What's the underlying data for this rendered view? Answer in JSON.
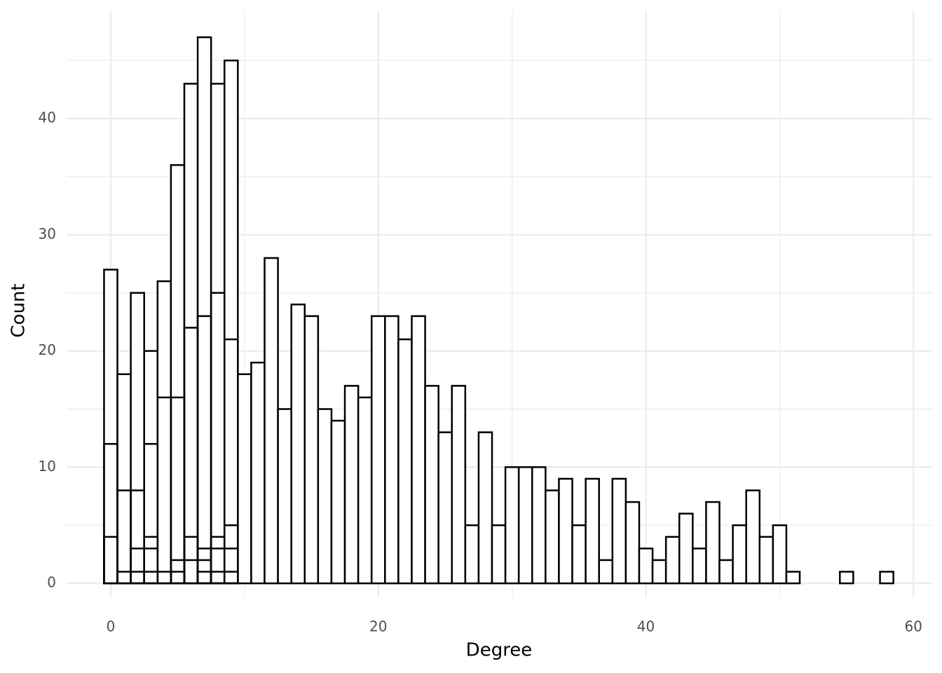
{
  "chart_data": {
    "type": "histogram",
    "x_label": "Degree",
    "y_label": "Count",
    "xlim": [
      -3.3,
      61.4
    ],
    "ylim": [
      -1.2,
      49.3
    ],
    "xticks": [
      0,
      20,
      40,
      60
    ],
    "yticks": [
      0,
      10,
      20,
      30,
      40
    ],
    "xticks_minor": [
      10,
      30,
      50
    ],
    "yticks_minor": [
      5,
      15,
      25,
      35,
      45
    ],
    "grid": true,
    "fill": "#ffffff",
    "edge_color": "#000000",
    "series": [
      {
        "bins": [
          -0.5,
          0.5,
          1.5,
          2.5,
          3.5,
          4.5,
          5.5,
          6.5,
          7.5,
          8.5,
          9.5,
          10.5,
          11.5,
          12.5,
          13.5,
          14.5,
          15.5,
          16.5,
          17.5,
          18.5,
          19.5,
          20.5,
          21.5,
          22.5,
          23.5,
          24.5,
          25.5,
          26.5,
          27.5,
          28.5,
          29.5,
          30.5,
          31.5,
          32.5,
          33.5,
          34.5,
          35.5,
          36.5,
          37.5,
          38.5,
          39.5,
          40.5,
          41.5,
          42.5,
          43.5,
          44.5,
          45.5,
          46.5,
          47.5,
          48.5,
          49.5,
          50.5,
          51.5,
          52.5,
          53.5,
          54.5,
          55.5,
          56.5,
          57.5,
          58.5
        ],
        "values": [
          27,
          18,
          25,
          20,
          26,
          36,
          43,
          47,
          43,
          45,
          18,
          19,
          28,
          15,
          24,
          23,
          15,
          14,
          17,
          16,
          23,
          23,
          21,
          23,
          17,
          13,
          17,
          5,
          13,
          5,
          10,
          10,
          10,
          8,
          9,
          5,
          9,
          2,
          9,
          7,
          3,
          2,
          4,
          6,
          3,
          7,
          2,
          5,
          8,
          4,
          5,
          1,
          0,
          0,
          0,
          1,
          0,
          0,
          1
        ]
      },
      {
        "bins": [
          -0.5,
          0.5,
          1.5,
          2.5,
          3.5,
          4.5,
          5.5,
          6.5,
          7.5,
          8.5,
          9.5
        ],
        "values": [
          12,
          8,
          8,
          12,
          16,
          16,
          22,
          23,
          25,
          21
        ]
      },
      {
        "bins": [
          -0.5,
          0.5,
          1.5,
          2.5,
          3.5,
          4.5,
          5.5,
          6.5,
          7.5,
          8.5,
          9.5
        ],
        "values": [
          4,
          1,
          3,
          4,
          1,
          2,
          4,
          3,
          4,
          5
        ]
      },
      {
        "bins": [
          -0.5,
          0.5,
          1.5,
          2.5,
          3.5,
          4.5,
          5.5,
          6.5,
          7.5,
          8.5,
          9.5
        ],
        "values": [
          null,
          null,
          1,
          3,
          null,
          1,
          2,
          2,
          3,
          3
        ]
      },
      {
        "bins": [
          -0.5,
          0.5,
          1.5,
          2.5,
          3.5,
          4.5,
          5.5,
          6.5,
          7.5,
          8.5,
          9.5
        ],
        "values": [
          null,
          null,
          null,
          1,
          null,
          null,
          null,
          1,
          1,
          1
        ]
      }
    ]
  }
}
